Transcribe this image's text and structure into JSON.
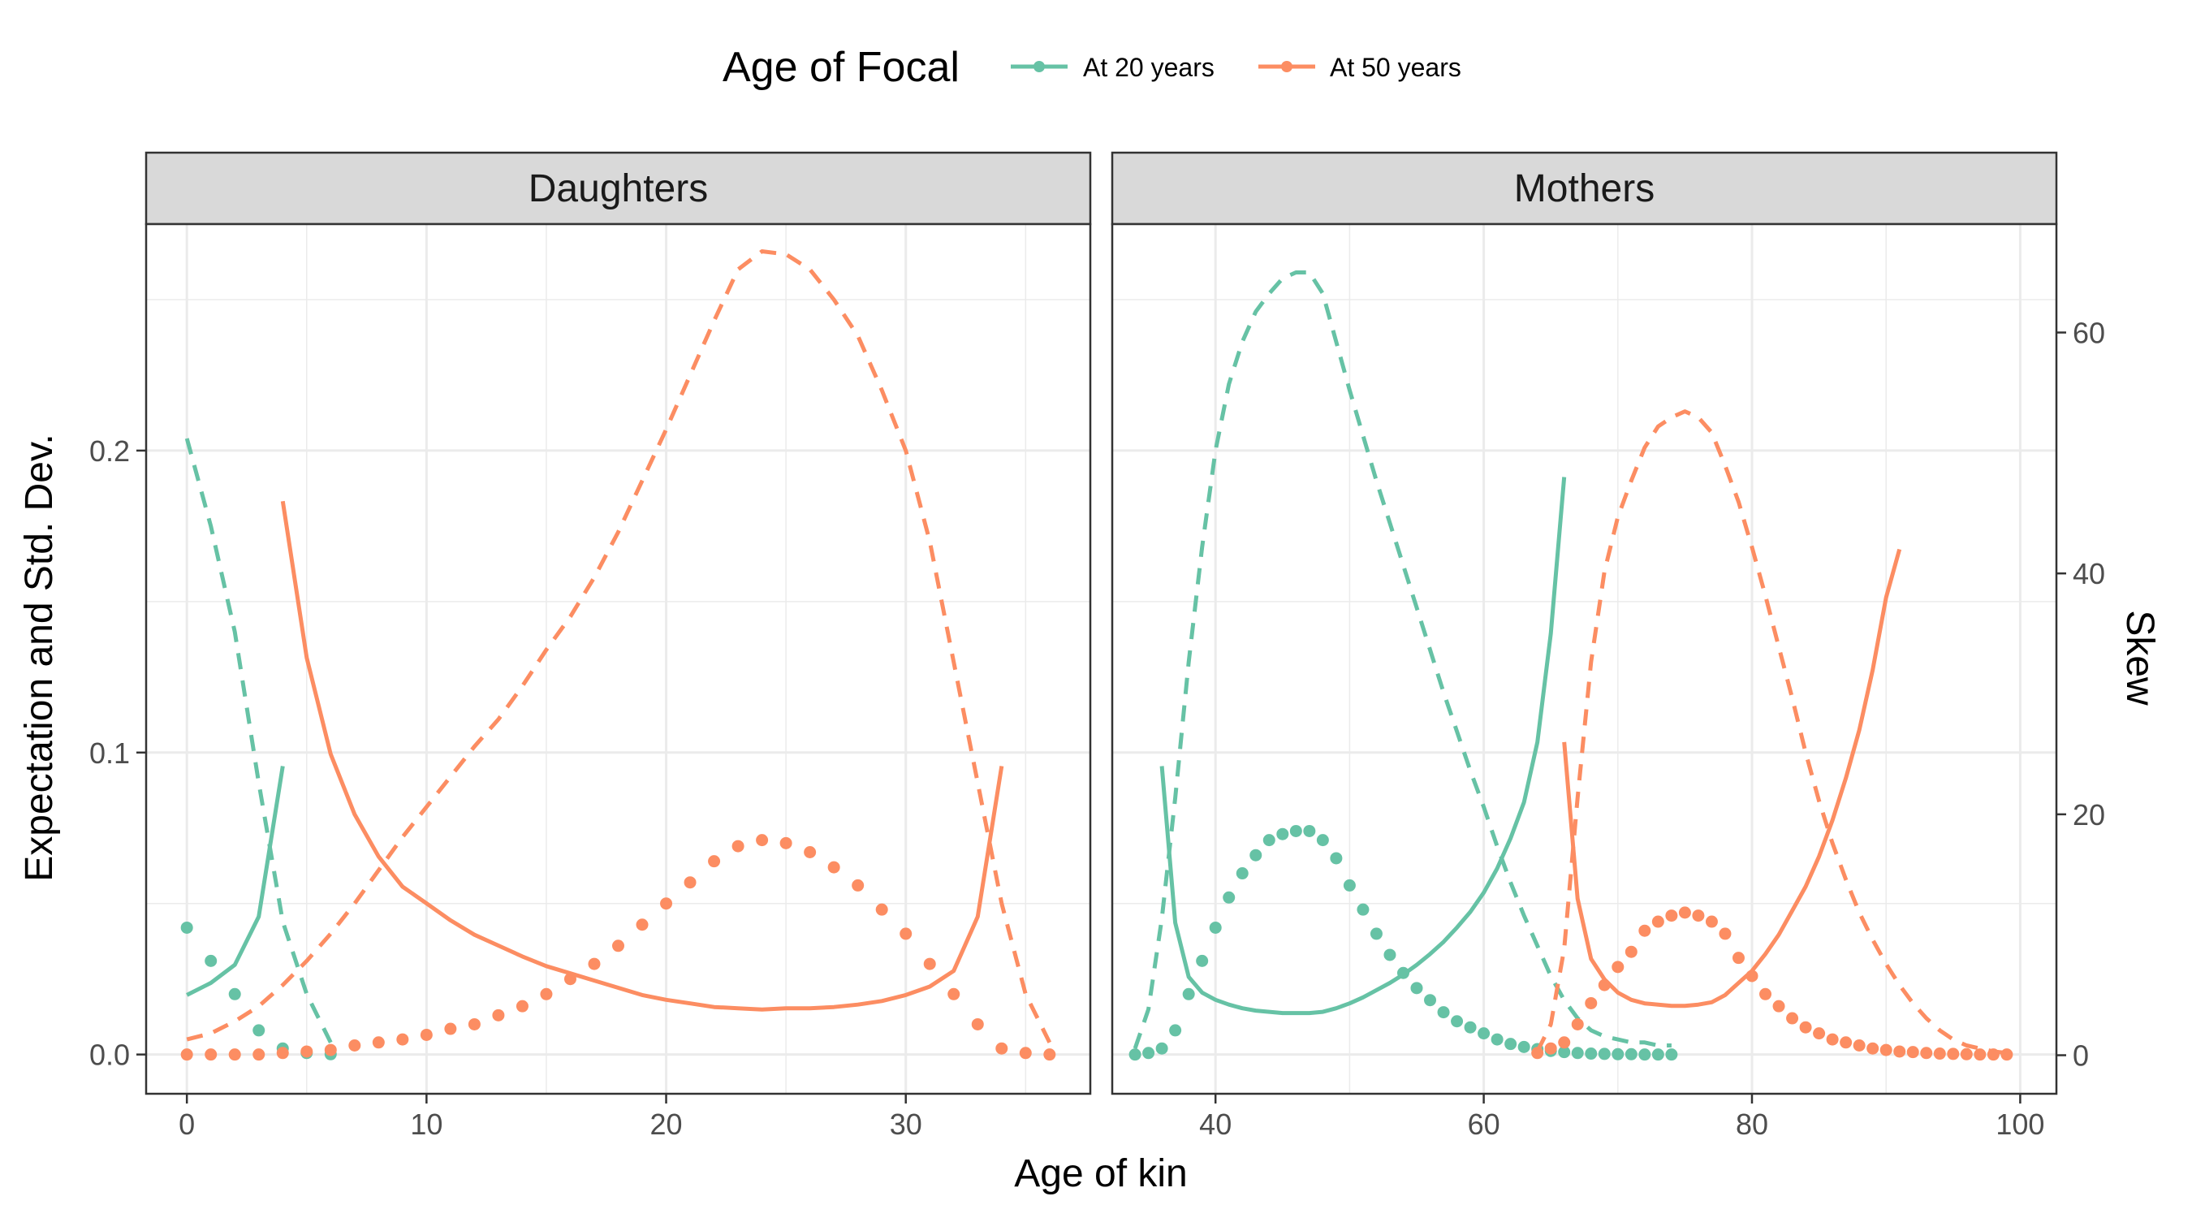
{
  "chart_data": {
    "type": "line",
    "ylabel": "Expectation and Std. Dev.",
    "y2label": "Skew",
    "xlabel": "Age of kin",
    "legend": {
      "title": "Age of Focal",
      "position": "top",
      "entries": [
        "At 20 years",
        "At 50 years"
      ]
    },
    "colors": {
      "At 20 years": "#66c2a5",
      "At 50 years": "#fc8d62"
    },
    "line_styles": {
      "expectation": "dotted",
      "std_dev": "dashed",
      "skew": "solid"
    },
    "grid": true,
    "ylim": [
      -0.013,
      0.275
    ],
    "y_ticks": [
      0.0,
      0.1,
      0.2
    ],
    "y_tick_labels": [
      "0.0",
      "0.1",
      "0.2"
    ],
    "y2lim": [
      -3.2,
      69
    ],
    "y2_ticks": [
      0,
      20,
      40,
      60
    ],
    "y2_tick_labels": [
      "0",
      "20",
      "40",
      "60"
    ],
    "panels": [
      {
        "strip": "Daughters",
        "xlim": [
          -1.7,
          37.7
        ],
        "x_ticks": [
          0,
          10,
          20,
          30
        ],
        "x_tick_labels": [
          "0",
          "10",
          "20",
          "30"
        ],
        "series": [
          {
            "name": "At 20 years",
            "kind": "expectation",
            "x": [
              0,
              1,
              2,
              3,
              4,
              5,
              6
            ],
            "y": [
              0.042,
              0.031,
              0.02,
              0.008,
              0.002,
              0.0005,
              0.0001
            ]
          },
          {
            "name": "At 20 years",
            "kind": "std_dev",
            "x": [
              0,
              1,
              2,
              3,
              4,
              5,
              6
            ],
            "y": [
              0.204,
              0.175,
              0.14,
              0.09,
              0.044,
              0.02,
              0.004
            ]
          },
          {
            "name": "At 20 years",
            "kind": "skew",
            "x": [
              0,
              1,
              2,
              3,
              4
            ],
            "y": [
              5,
              6,
              7.5,
              11.5,
              24
            ]
          },
          {
            "name": "At 50 years",
            "kind": "expectation",
            "x": [
              0,
              1,
              2,
              3,
              4,
              5,
              6,
              7,
              8,
              9,
              10,
              11,
              12,
              13,
              14,
              15,
              16,
              17,
              18,
              19,
              20,
              21,
              22,
              23,
              24,
              25,
              26,
              27,
              28,
              29,
              30,
              31,
              32,
              33,
              34,
              35,
              36
            ],
            "y": [
              0.0,
              0.0,
              0.0,
              0.0,
              0.0005,
              0.001,
              0.0015,
              0.003,
              0.004,
              0.005,
              0.0065,
              0.0085,
              0.01,
              0.013,
              0.016,
              0.02,
              0.025,
              0.03,
              0.036,
              0.043,
              0.05,
              0.057,
              0.064,
              0.069,
              0.071,
              0.07,
              0.067,
              0.062,
              0.056,
              0.048,
              0.04,
              0.03,
              0.02,
              0.01,
              0.002,
              0.0005,
              0.0
            ]
          },
          {
            "name": "At 50 years",
            "kind": "std_dev",
            "x": [
              0,
              1,
              2,
              3,
              4,
              5,
              6,
              7,
              8,
              9,
              10,
              11,
              12,
              13,
              14,
              15,
              16,
              17,
              18,
              19,
              20,
              21,
              22,
              23,
              24,
              25,
              26,
              27,
              28,
              29,
              30,
              31,
              32,
              33,
              34,
              35,
              36
            ],
            "y": [
              0.005,
              0.007,
              0.011,
              0.016,
              0.023,
              0.031,
              0.04,
              0.05,
              0.061,
              0.072,
              0.082,
              0.092,
              0.102,
              0.111,
              0.122,
              0.134,
              0.145,
              0.158,
              0.173,
              0.19,
              0.207,
              0.225,
              0.243,
              0.26,
              0.266,
              0.265,
              0.26,
              0.25,
              0.238,
              0.22,
              0.2,
              0.17,
              0.13,
              0.09,
              0.05,
              0.02,
              0.004
            ]
          },
          {
            "name": "At 50 years",
            "kind": "skew",
            "x": [
              4,
              5,
              6,
              7,
              8,
              9,
              10,
              11,
              12,
              13,
              14,
              15,
              16,
              17,
              18,
              19,
              20,
              21,
              22,
              23,
              24,
              25,
              26,
              27,
              28,
              29,
              30,
              31,
              32,
              33,
              34
            ],
            "y": [
              46,
              33,
              25,
              20,
              16.5,
              14,
              12.6,
              11.2,
              10,
              9.1,
              8.2,
              7.4,
              6.8,
              6.2,
              5.6,
              5,
              4.6,
              4.3,
              4,
              3.9,
              3.8,
              3.9,
              3.9,
              4,
              4.2,
              4.5,
              5,
              5.7,
              7,
              11.5,
              24
            ]
          }
        ]
      },
      {
        "strip": "Mothers",
        "xlim": [
          32.3,
          102.7
        ],
        "x_ticks": [
          40,
          60,
          80,
          100
        ],
        "x_tick_labels": [
          "40",
          "60",
          "80",
          "100"
        ],
        "series": [
          {
            "name": "At 20 years",
            "kind": "expectation",
            "x": [
              34,
              35,
              36,
              37,
              38,
              39,
              40,
              41,
              42,
              43,
              44,
              45,
              46,
              47,
              48,
              49,
              50,
              51,
              52,
              53,
              54,
              55,
              56,
              57,
              58,
              59,
              60,
              61,
              62,
              63,
              64,
              65,
              66,
              67,
              68,
              69,
              70,
              71,
              72,
              73,
              74
            ],
            "y": [
              0.0,
              0.0005,
              0.002,
              0.008,
              0.02,
              0.031,
              0.042,
              0.052,
              0.06,
              0.066,
              0.071,
              0.073,
              0.074,
              0.074,
              0.071,
              0.065,
              0.056,
              0.048,
              0.04,
              0.033,
              0.027,
              0.022,
              0.018,
              0.014,
              0.011,
              0.009,
              0.007,
              0.005,
              0.0035,
              0.0025,
              0.0018,
              0.0012,
              0.0008,
              0.0005,
              0.0003,
              0.0002,
              0.0001,
              0.0001,
              0.0,
              0.0,
              0.0
            ]
          },
          {
            "name": "At 20 years",
            "kind": "std_dev",
            "x": [
              34,
              35,
              36,
              37,
              38,
              39,
              40,
              41,
              42,
              43,
              44,
              45,
              46,
              47,
              48,
              49,
              50,
              51,
              52,
              53,
              54,
              55,
              56,
              57,
              58,
              59,
              60,
              61,
              62,
              63,
              64,
              65,
              66,
              67,
              68,
              69,
              70,
              71,
              72,
              73,
              74
            ],
            "y": [
              0.002,
              0.015,
              0.045,
              0.085,
              0.13,
              0.168,
              0.2,
              0.222,
              0.236,
              0.246,
              0.252,
              0.257,
              0.259,
              0.259,
              0.252,
              0.236,
              0.22,
              0.205,
              0.19,
              0.176,
              0.162,
              0.148,
              0.134,
              0.12,
              0.107,
              0.094,
              0.082,
              0.069,
              0.057,
              0.046,
              0.036,
              0.026,
              0.018,
              0.012,
              0.008,
              0.006,
              0.005,
              0.004,
              0.004,
              0.003,
              0.003
            ]
          },
          {
            "name": "At 20 years",
            "kind": "skew",
            "x": [
              36,
              37,
              38,
              39,
              40,
              41,
              42,
              43,
              44,
              45,
              46,
              47,
              48,
              49,
              50,
              51,
              52,
              53,
              54,
              55,
              56,
              57,
              58,
              59,
              60,
              61,
              62,
              63,
              64,
              65,
              66
            ],
            "y": [
              24,
              11,
              6.5,
              5.2,
              4.6,
              4.2,
              3.9,
              3.7,
              3.6,
              3.5,
              3.5,
              3.5,
              3.6,
              3.9,
              4.3,
              4.8,
              5.4,
              6,
              6.7,
              7.5,
              8.4,
              9.4,
              10.6,
              11.9,
              13.5,
              15.5,
              18,
              21,
              26,
              35,
              48
            ]
          },
          {
            "name": "At 50 years",
            "kind": "expectation",
            "x": [
              64,
              65,
              66,
              67,
              68,
              69,
              70,
              71,
              72,
              73,
              74,
              75,
              76,
              77,
              78,
              79,
              80,
              81,
              82,
              83,
              84,
              85,
              86,
              87,
              88,
              89,
              90,
              91,
              92,
              93,
              94,
              95,
              96,
              97,
              98,
              99
            ],
            "y": [
              0.0005,
              0.002,
              0.004,
              0.01,
              0.017,
              0.023,
              0.029,
              0.034,
              0.041,
              0.044,
              0.046,
              0.047,
              0.046,
              0.044,
              0.04,
              0.032,
              0.026,
              0.02,
              0.016,
              0.012,
              0.009,
              0.007,
              0.005,
              0.004,
              0.003,
              0.002,
              0.0015,
              0.001,
              0.0008,
              0.0005,
              0.0003,
              0.0002,
              0.0001,
              0.0,
              0.0,
              0.0
            ]
          },
          {
            "name": "At 50 years",
            "kind": "std_dev",
            "x": [
              64,
              65,
              66,
              67,
              68,
              69,
              70,
              71,
              72,
              73,
              74,
              75,
              76,
              77,
              78,
              79,
              80,
              81,
              82,
              83,
              84,
              85,
              86,
              87,
              88,
              89,
              90,
              91,
              92,
              93,
              94,
              95,
              96,
              97,
              98,
              99
            ],
            "y": [
              0.001,
              0.01,
              0.035,
              0.085,
              0.13,
              0.16,
              0.178,
              0.19,
              0.201,
              0.208,
              0.211,
              0.213,
              0.211,
              0.206,
              0.195,
              0.183,
              0.168,
              0.152,
              0.135,
              0.118,
              0.1,
              0.084,
              0.07,
              0.058,
              0.047,
              0.038,
              0.03,
              0.023,
              0.017,
              0.012,
              0.008,
              0.005,
              0.003,
              0.002,
              0.001,
              0.0005
            ]
          },
          {
            "name": "At 50 years",
            "kind": "skew",
            "x": [
              66,
              67,
              68,
              69,
              70,
              71,
              72,
              73,
              74,
              75,
              76,
              77,
              78,
              79,
              80,
              81,
              82,
              83,
              84,
              85,
              86,
              87,
              88,
              89,
              90,
              91
            ],
            "y": [
              26,
              13,
              8,
              6.3,
              5.2,
              4.6,
              4.3,
              4.2,
              4.1,
              4.1,
              4.2,
              4.4,
              5,
              6,
              7,
              8.4,
              10,
              12,
              14,
              16.5,
              19.5,
              23,
              27,
              32,
              38,
              42
            ]
          }
        ]
      }
    ]
  }
}
